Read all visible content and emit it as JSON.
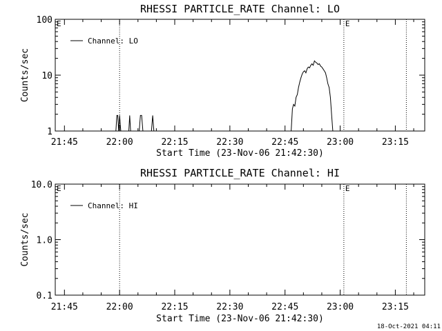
{
  "chart_data": [
    {
      "type": "line",
      "title": "RHESSI PARTICLE_RATE Channel: LO",
      "xlabel": "Start Time (23-Nov-06 21:42:30)",
      "ylabel": "Counts/sec",
      "yscale": "log",
      "xlim": [
        "21:42:30",
        "23:23:00"
      ],
      "ylim": [
        1,
        100
      ],
      "xticks": [
        "21:45",
        "22:00",
        "22:15",
        "22:30",
        "22:45",
        "23:00",
        "23:15"
      ],
      "yticks": [
        "1",
        "10",
        "100"
      ],
      "legend": {
        "entries": [
          "Channel: LO"
        ],
        "position": "top-left"
      },
      "annotations": [
        {
          "label": "E",
          "at": "21:42:30"
        },
        {
          "label": "E",
          "at": "23:01:00"
        }
      ],
      "vlines": [
        "22:00:00",
        "23:01:00",
        "23:18:00"
      ],
      "series": [
        {
          "name": "Channel: LO",
          "x": [
            "21:42:30",
            "21:59:00",
            "21:59:15",
            "21:59:30",
            "21:59:45",
            "22:00:00",
            "22:00:20",
            "22:02:30",
            "22:02:45",
            "22:03:00",
            "22:05:20",
            "22:05:40",
            "22:06:00",
            "22:06:20",
            "22:08:40",
            "22:09:00",
            "22:09:20",
            "22:46:40",
            "22:47:00",
            "22:47:20",
            "22:47:40",
            "22:48:00",
            "22:48:20",
            "22:48:40",
            "22:49:00",
            "22:49:20",
            "22:49:40",
            "22:50:00",
            "22:50:20",
            "22:50:40",
            "22:51:00",
            "22:51:20",
            "22:51:40",
            "22:52:00",
            "22:52:20",
            "22:52:40",
            "22:53:00",
            "22:53:20",
            "22:53:40",
            "22:54:00",
            "22:54:20",
            "22:54:40",
            "22:55:00",
            "22:55:20",
            "22:55:40",
            "22:56:00",
            "22:56:20",
            "22:56:40",
            "22:57:00",
            "22:57:20",
            "22:57:40",
            "22:58:00"
          ],
          "y": [
            1,
            1,
            1.9,
            1.9,
            1,
            1.9,
            1,
            1,
            1.9,
            1,
            1,
            1.9,
            1.9,
            1,
            1,
            1.9,
            1,
            1,
            2.5,
            3,
            2.8,
            4,
            4.5,
            6,
            7.5,
            9,
            10.5,
            11.5,
            12,
            11,
            13,
            14,
            13.5,
            15,
            16,
            15,
            18,
            17,
            16.5,
            15.5,
            16,
            14.5,
            14,
            13,
            12,
            11,
            9,
            7,
            6,
            4,
            2,
            1
          ]
        }
      ]
    },
    {
      "type": "line",
      "title": "RHESSI PARTICLE_RATE Channel: HI",
      "xlabel": "Start Time (23-Nov-06 21:42:30)",
      "ylabel": "Counts/sec",
      "yscale": "log",
      "xlim": [
        "21:42:30",
        "23:23:00"
      ],
      "ylim": [
        0.1,
        10
      ],
      "xticks": [
        "21:45",
        "22:00",
        "22:15",
        "22:30",
        "22:45",
        "23:00",
        "23:15"
      ],
      "yticks": [
        "0.1",
        "1.0",
        "10.0"
      ],
      "legend": {
        "entries": [
          "Channel: HI"
        ],
        "position": "top-left"
      },
      "annotations": [
        {
          "label": "E",
          "at": "21:42:30"
        },
        {
          "label": "E",
          "at": "23:01:00"
        }
      ],
      "vlines": [
        "22:00:00",
        "23:01:00",
        "23:18:00"
      ],
      "series": [
        {
          "name": "Channel: HI",
          "x": [],
          "y": []
        }
      ]
    }
  ],
  "footer": {
    "timestamp": "18-Oct-2021 04:11"
  }
}
